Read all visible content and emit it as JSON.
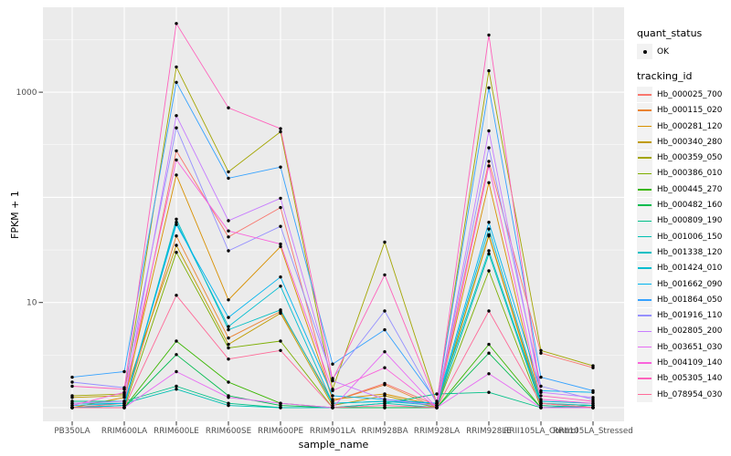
{
  "style": {
    "figure_bg": "#FFFFFF",
    "panel_bg": "#EBEBEB",
    "grid_color": "#FFFFFF",
    "tick_color": "#333333",
    "tick_label_color": "#4D4D4D",
    "point_color": "#000000",
    "legend_key_bg": "#F2F2F2"
  },
  "chart_data": {
    "type": "line",
    "title": "",
    "xlabel": "sample_name",
    "ylabel": "FPKM + 1",
    "y_scale": "log10",
    "ylim": [
      1,
      6300
    ],
    "grid": true,
    "legend_position": "right",
    "y_ticks": [
      {
        "label": "1000",
        "value": 1000
      },
      {
        "label": "10",
        "value": 10
      }
    ],
    "y_gridlines_major_exponents": [
      0,
      1,
      2,
      3
    ],
    "y_gridlines_minor_exponents": [
      0.5,
      1.5,
      2.5,
      3.5
    ],
    "categories": [
      "PB350LA",
      "RRIM600LA",
      "RRIM600LE",
      "RRIM600SE",
      "RRIM600PE",
      "RRIM901LA",
      "RRIM928BA",
      "RRIM928LA",
      "RRIM928LE",
      "RRII105LA_Control",
      "RRII105LA_Stressed"
    ],
    "quant_status": {
      "title": "quant_status",
      "items": [
        {
          "label": "OK",
          "shape": "point",
          "color": "#000000"
        }
      ]
    },
    "tracking_id_title": "tracking_id",
    "series": [
      {
        "name": "Hb_000025_700",
        "color": "#F8766D",
        "values": [
          1.0,
          1.1,
          277,
          42,
          80,
          1.15,
          1.7,
          1.05,
          220,
          3.3,
          2.4
        ]
      },
      {
        "name": "Hb_000115_020",
        "color": "#EA8331",
        "values": [
          1.0,
          1.05,
          43,
          4.6,
          8.2,
          1.15,
          1.65,
          1.0,
          44,
          1.1,
          1.05
        ]
      },
      {
        "name": "Hb_000281_120",
        "color": "#D89000",
        "values": [
          1.0,
          1.25,
          163,
          10.6,
          34,
          1.2,
          1.35,
          1.05,
          138,
          1.1,
          1.0
        ]
      },
      {
        "name": "Hb_000340_280",
        "color": "#C09B00",
        "values": [
          1.25,
          1.3,
          35,
          4.0,
          7.9,
          1.05,
          1.3,
          1.0,
          43,
          1.05,
          1.0
        ]
      },
      {
        "name": "Hb_000359_050",
        "color": "#A3A500",
        "values": [
          1.3,
          1.35,
          1740,
          175,
          420,
          1.5,
          37.5,
          1.1,
          1600,
          3.5,
          2.5
        ]
      },
      {
        "name": "Hb_000386_010",
        "color": "#7CAE00",
        "values": [
          1.0,
          1.0,
          30,
          3.7,
          4.3,
          1.0,
          1.0,
          1.0,
          20,
          1.0,
          1.0
        ]
      },
      {
        "name": "Hb_000445_270",
        "color": "#39B600",
        "values": [
          1.0,
          1.0,
          4.3,
          1.75,
          1.1,
          1.0,
          1.0,
          1.0,
          4.0,
          1.0,
          1.0
        ]
      },
      {
        "name": "Hb_000482_160",
        "color": "#00BB4E",
        "values": [
          1.0,
          1.0,
          3.2,
          1.3,
          1.05,
          1.0,
          1.0,
          1.0,
          3.3,
          1.0,
          1.0
        ]
      },
      {
        "name": "Hb_000809_190",
        "color": "#00C087",
        "values": [
          1.15,
          1.15,
          1.6,
          1.1,
          1.0,
          1.0,
          1.1,
          1.35,
          1.4,
          1.0,
          1.05
        ]
      },
      {
        "name": "Hb_001006_150",
        "color": "#00C0B2",
        "values": [
          1.1,
          1.1,
          1.5,
          1.05,
          1.0,
          1.0,
          1.1,
          1.0,
          29,
          1.05,
          1.0
        ]
      },
      {
        "name": "Hb_001338_120",
        "color": "#00BFC4",
        "values": [
          1.0,
          1.05,
          62,
          5.5,
          8.5,
          1.1,
          1.15,
          1.1,
          31,
          1.1,
          1.05
        ]
      },
      {
        "name": "Hb_001424_010",
        "color": "#00BDD0",
        "values": [
          1.0,
          1.05,
          58,
          5.9,
          14.3,
          1.1,
          1.15,
          1.05,
          50,
          1.15,
          1.1
        ]
      },
      {
        "name": "Hb_001662_090",
        "color": "#00B4EF",
        "values": [
          1.05,
          1.1,
          55,
          7.2,
          17.5,
          1.3,
          1.2,
          1.1,
          58,
          1.45,
          1.4
        ]
      },
      {
        "name": "Hb_001864_050",
        "color": "#35A2FF",
        "values": [
          1.95,
          2.2,
          1240,
          152,
          194,
          2.6,
          5.5,
          1.15,
          1100,
          1.95,
          1.45
        ]
      },
      {
        "name": "Hb_001916_110",
        "color": "#9590FF",
        "values": [
          1.75,
          1.55,
          458,
          31,
          53,
          1.9,
          8.3,
          1.1,
          296,
          1.6,
          1.2
        ]
      },
      {
        "name": "Hb_002805_200",
        "color": "#C77CFF",
        "values": [
          1.1,
          1.15,
          598,
          60,
          98,
          1.8,
          1.2,
          1.05,
          429,
          1.4,
          1.25
        ]
      },
      {
        "name": "Hb_003651_030",
        "color": "#E76BF3",
        "values": [
          1.0,
          1.0,
          2.2,
          1.25,
          1.1,
          1.0,
          3.4,
          1.0,
          2.1,
          1.0,
          1.0
        ]
      },
      {
        "name": "Hb_004109_140",
        "color": "#FA62DB",
        "values": [
          1.05,
          1.4,
          227,
          48,
          36,
          1.45,
          2.4,
          1.0,
          199,
          1.2,
          1.1
        ]
      },
      {
        "name": "Hb_005305_140",
        "color": "#FF62BC",
        "values": [
          1.6,
          1.5,
          4500,
          711,
          450,
          1.85,
          18.3,
          1.1,
          3500,
          1.3,
          1.15
        ]
      },
      {
        "name": "Hb_078954_030",
        "color": "#FF6A98",
        "values": [
          1.0,
          1.0,
          11.7,
          2.9,
          3.5,
          1.0,
          1.05,
          1.0,
          8.3,
          1.1,
          1.0
        ]
      }
    ]
  }
}
